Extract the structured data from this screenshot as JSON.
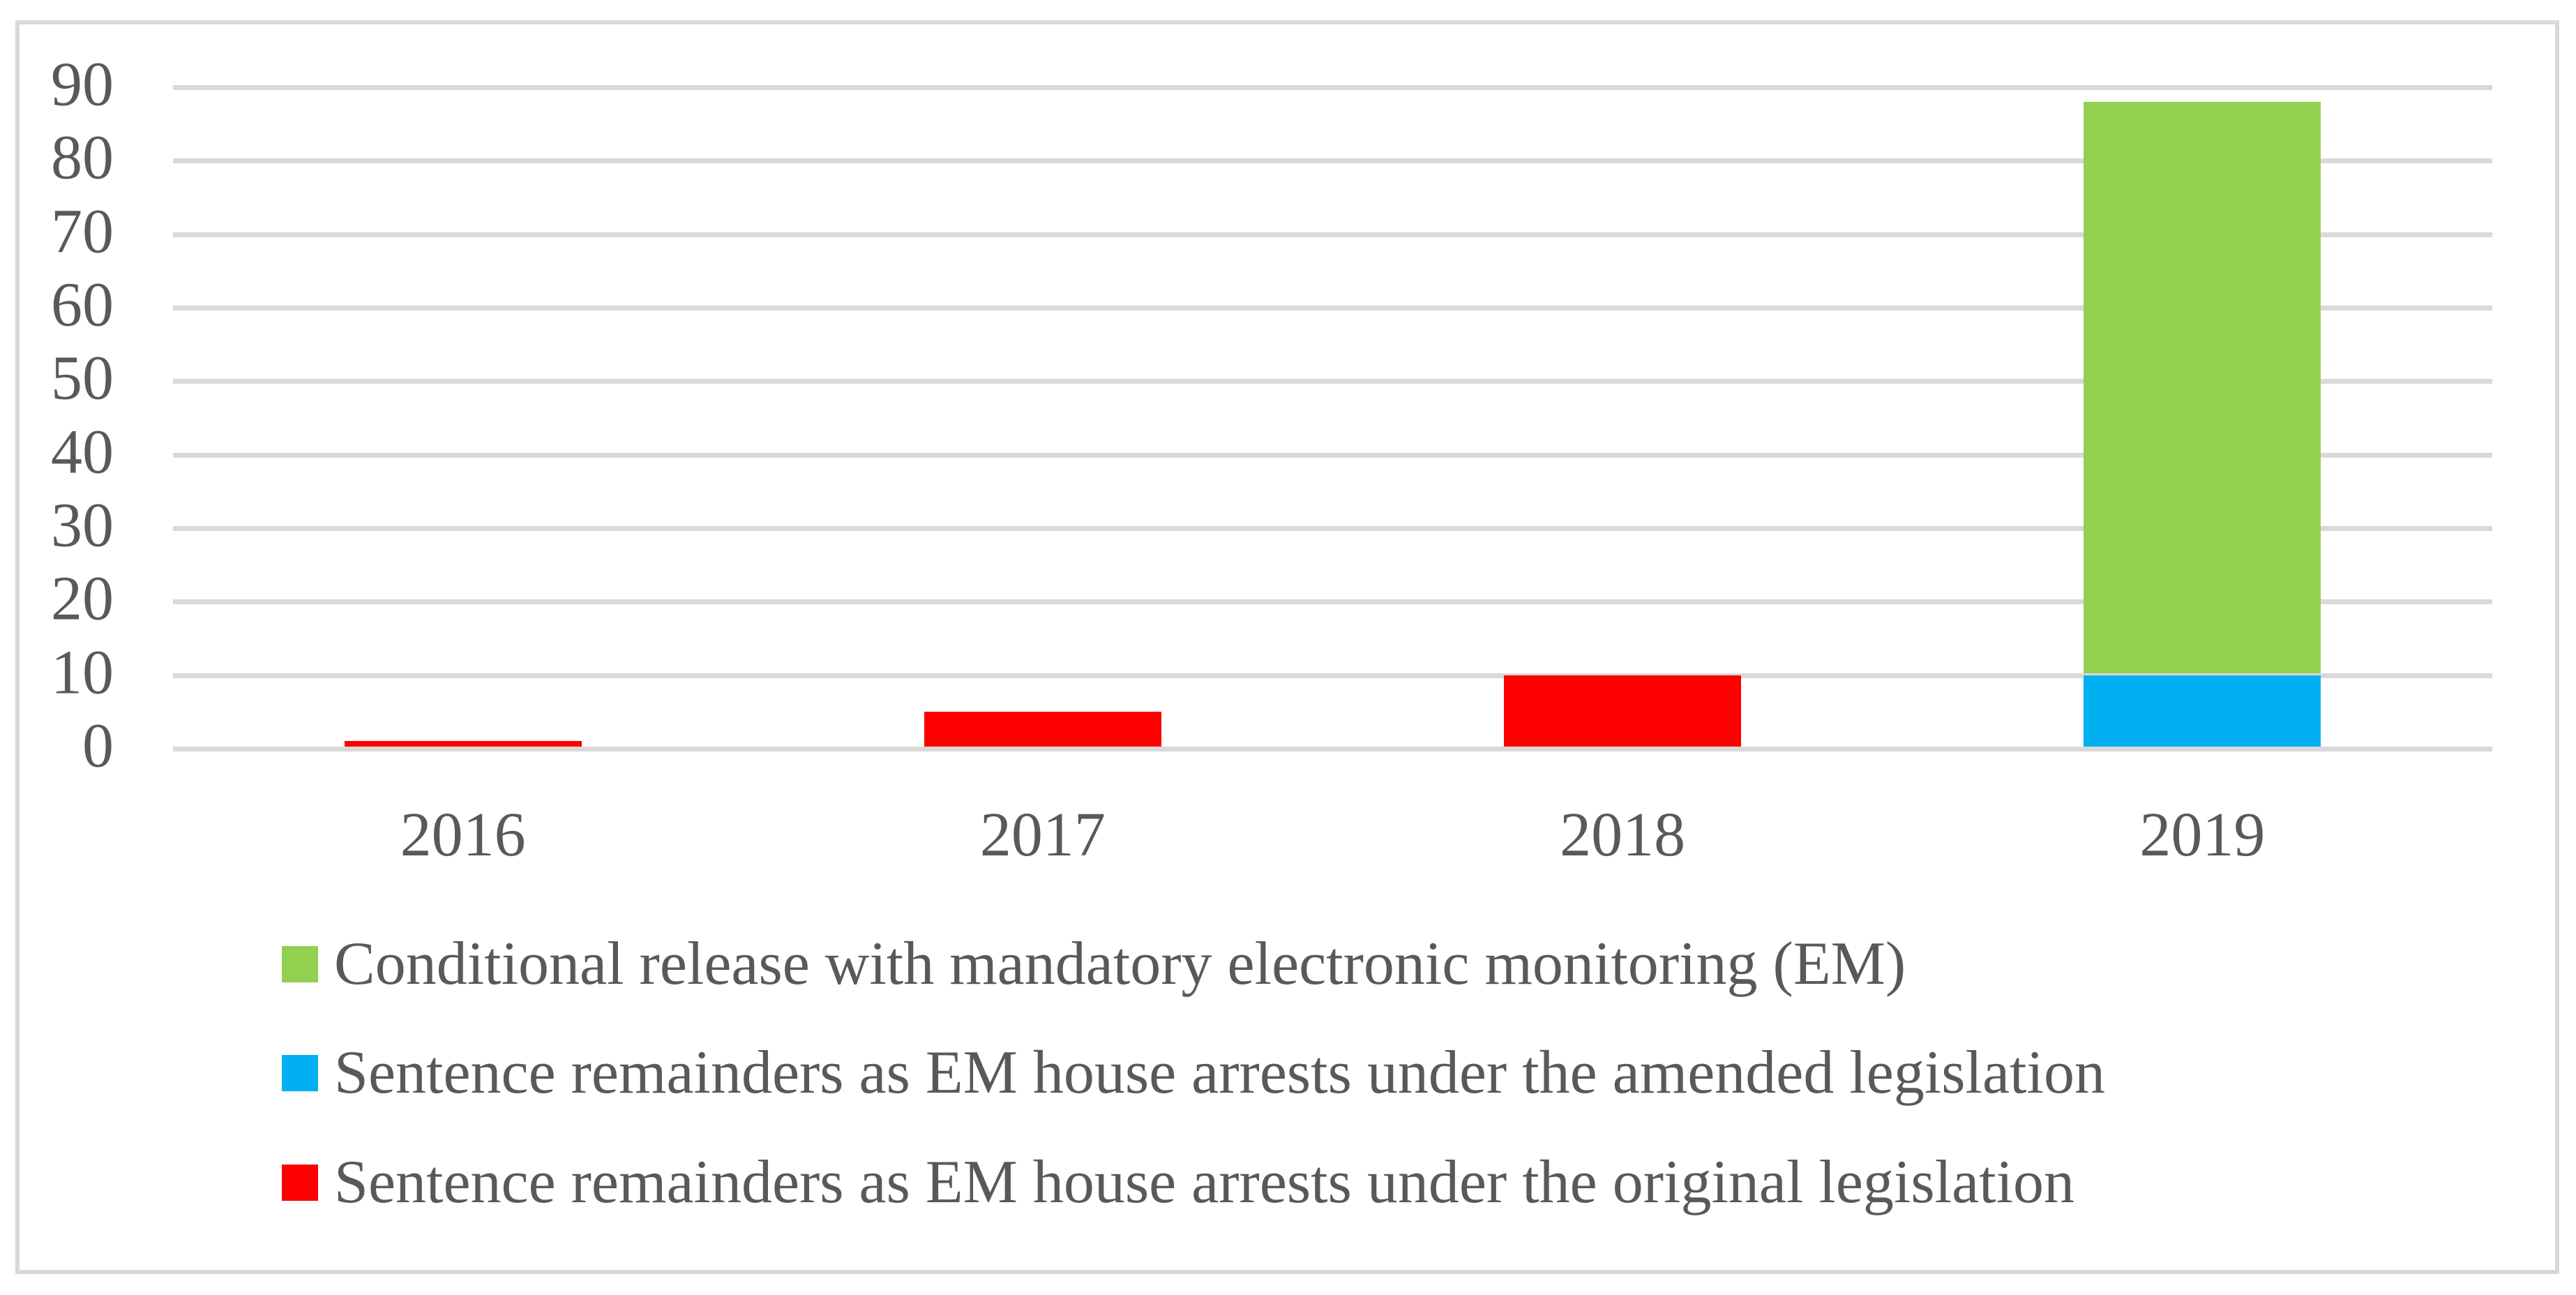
{
  "chart_data": {
    "type": "bar",
    "stacked": true,
    "title": "",
    "xlabel": "",
    "ylabel": "",
    "categories": [
      "2016",
      "2017",
      "2018",
      "2019"
    ],
    "series": [
      {
        "name": "Sentence remainders as EM house arrests under the original legislation",
        "color": "#FF0000",
        "values": [
          1,
          5,
          10,
          0
        ]
      },
      {
        "name": "Sentence remainders as EM house arrests under the amended legislation",
        "color": "#00B0F0",
        "values": [
          0,
          0,
          0,
          10
        ]
      },
      {
        "name": "Conditional release with mandatory electronic monitoring (EM)",
        "color": "#92D050",
        "values": [
          0,
          0,
          0,
          78
        ]
      }
    ],
    "legend": [
      {
        "label": "Conditional release with mandatory electronic monitoring (EM)",
        "color": "#92D050"
      },
      {
        "label": "Sentence remainders as EM house arrests under the amended legislation",
        "color": "#00B0F0"
      },
      {
        "label": "Sentence remainders as EM house arrests under the original legislation",
        "color": "#FF0000"
      }
    ],
    "ylim": [
      0,
      90
    ],
    "yticks": [
      0,
      10,
      20,
      30,
      40,
      50,
      60,
      70,
      80,
      90
    ],
    "grid": true,
    "legend_position": "bottom-left"
  },
  "style": {
    "grid_color": "#D9D9D9",
    "frame_border_color": "#D9D9D9",
    "axis_text_color": "#595959",
    "background_color": "#FFFFFF"
  }
}
